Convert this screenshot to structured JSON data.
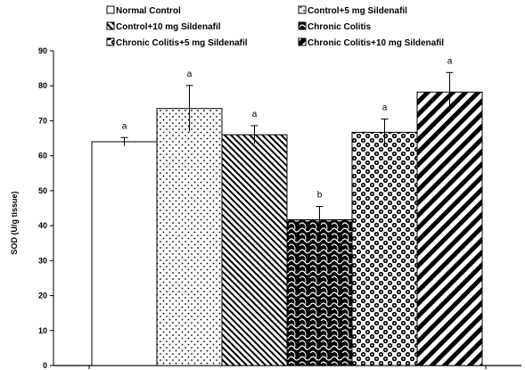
{
  "chart_data": {
    "type": "bar",
    "title": "",
    "xlabel": "",
    "ylabel": "SOD (U/g tissue)",
    "ylim": [
      0,
      90
    ],
    "yticks": [
      0,
      10,
      20,
      30,
      40,
      50,
      60,
      70,
      80,
      90
    ],
    "grid": false,
    "legend_position": "top",
    "series": [
      {
        "name": "Normal Control",
        "value": 64,
        "error": 1.2,
        "significance": "a",
        "pattern": "empty"
      },
      {
        "name": "Control+5 mg Sildenafil",
        "value": 73.5,
        "error": 6.6,
        "significance": "a",
        "pattern": "dots"
      },
      {
        "name": "Control+10 mg Sildenafil",
        "value": 66,
        "error": 2.6,
        "significance": "a",
        "pattern": "diagonal-fine"
      },
      {
        "name": "Chronic Colitis",
        "value": 41.7,
        "error": 3.8,
        "significance": "b",
        "pattern": "dark-weave"
      },
      {
        "name": "Chronic Colitis+5 mg Sildenafil",
        "value": 66.7,
        "error": 3.8,
        "significance": "a",
        "pattern": "checker"
      },
      {
        "name": "Chronic Colitis+10 mg Sildenafil",
        "value": 78.2,
        "error": 5.6,
        "significance": "a",
        "pattern": "diagonal-wide"
      }
    ],
    "legend_order": [
      0,
      1,
      2,
      3,
      4,
      5
    ]
  }
}
